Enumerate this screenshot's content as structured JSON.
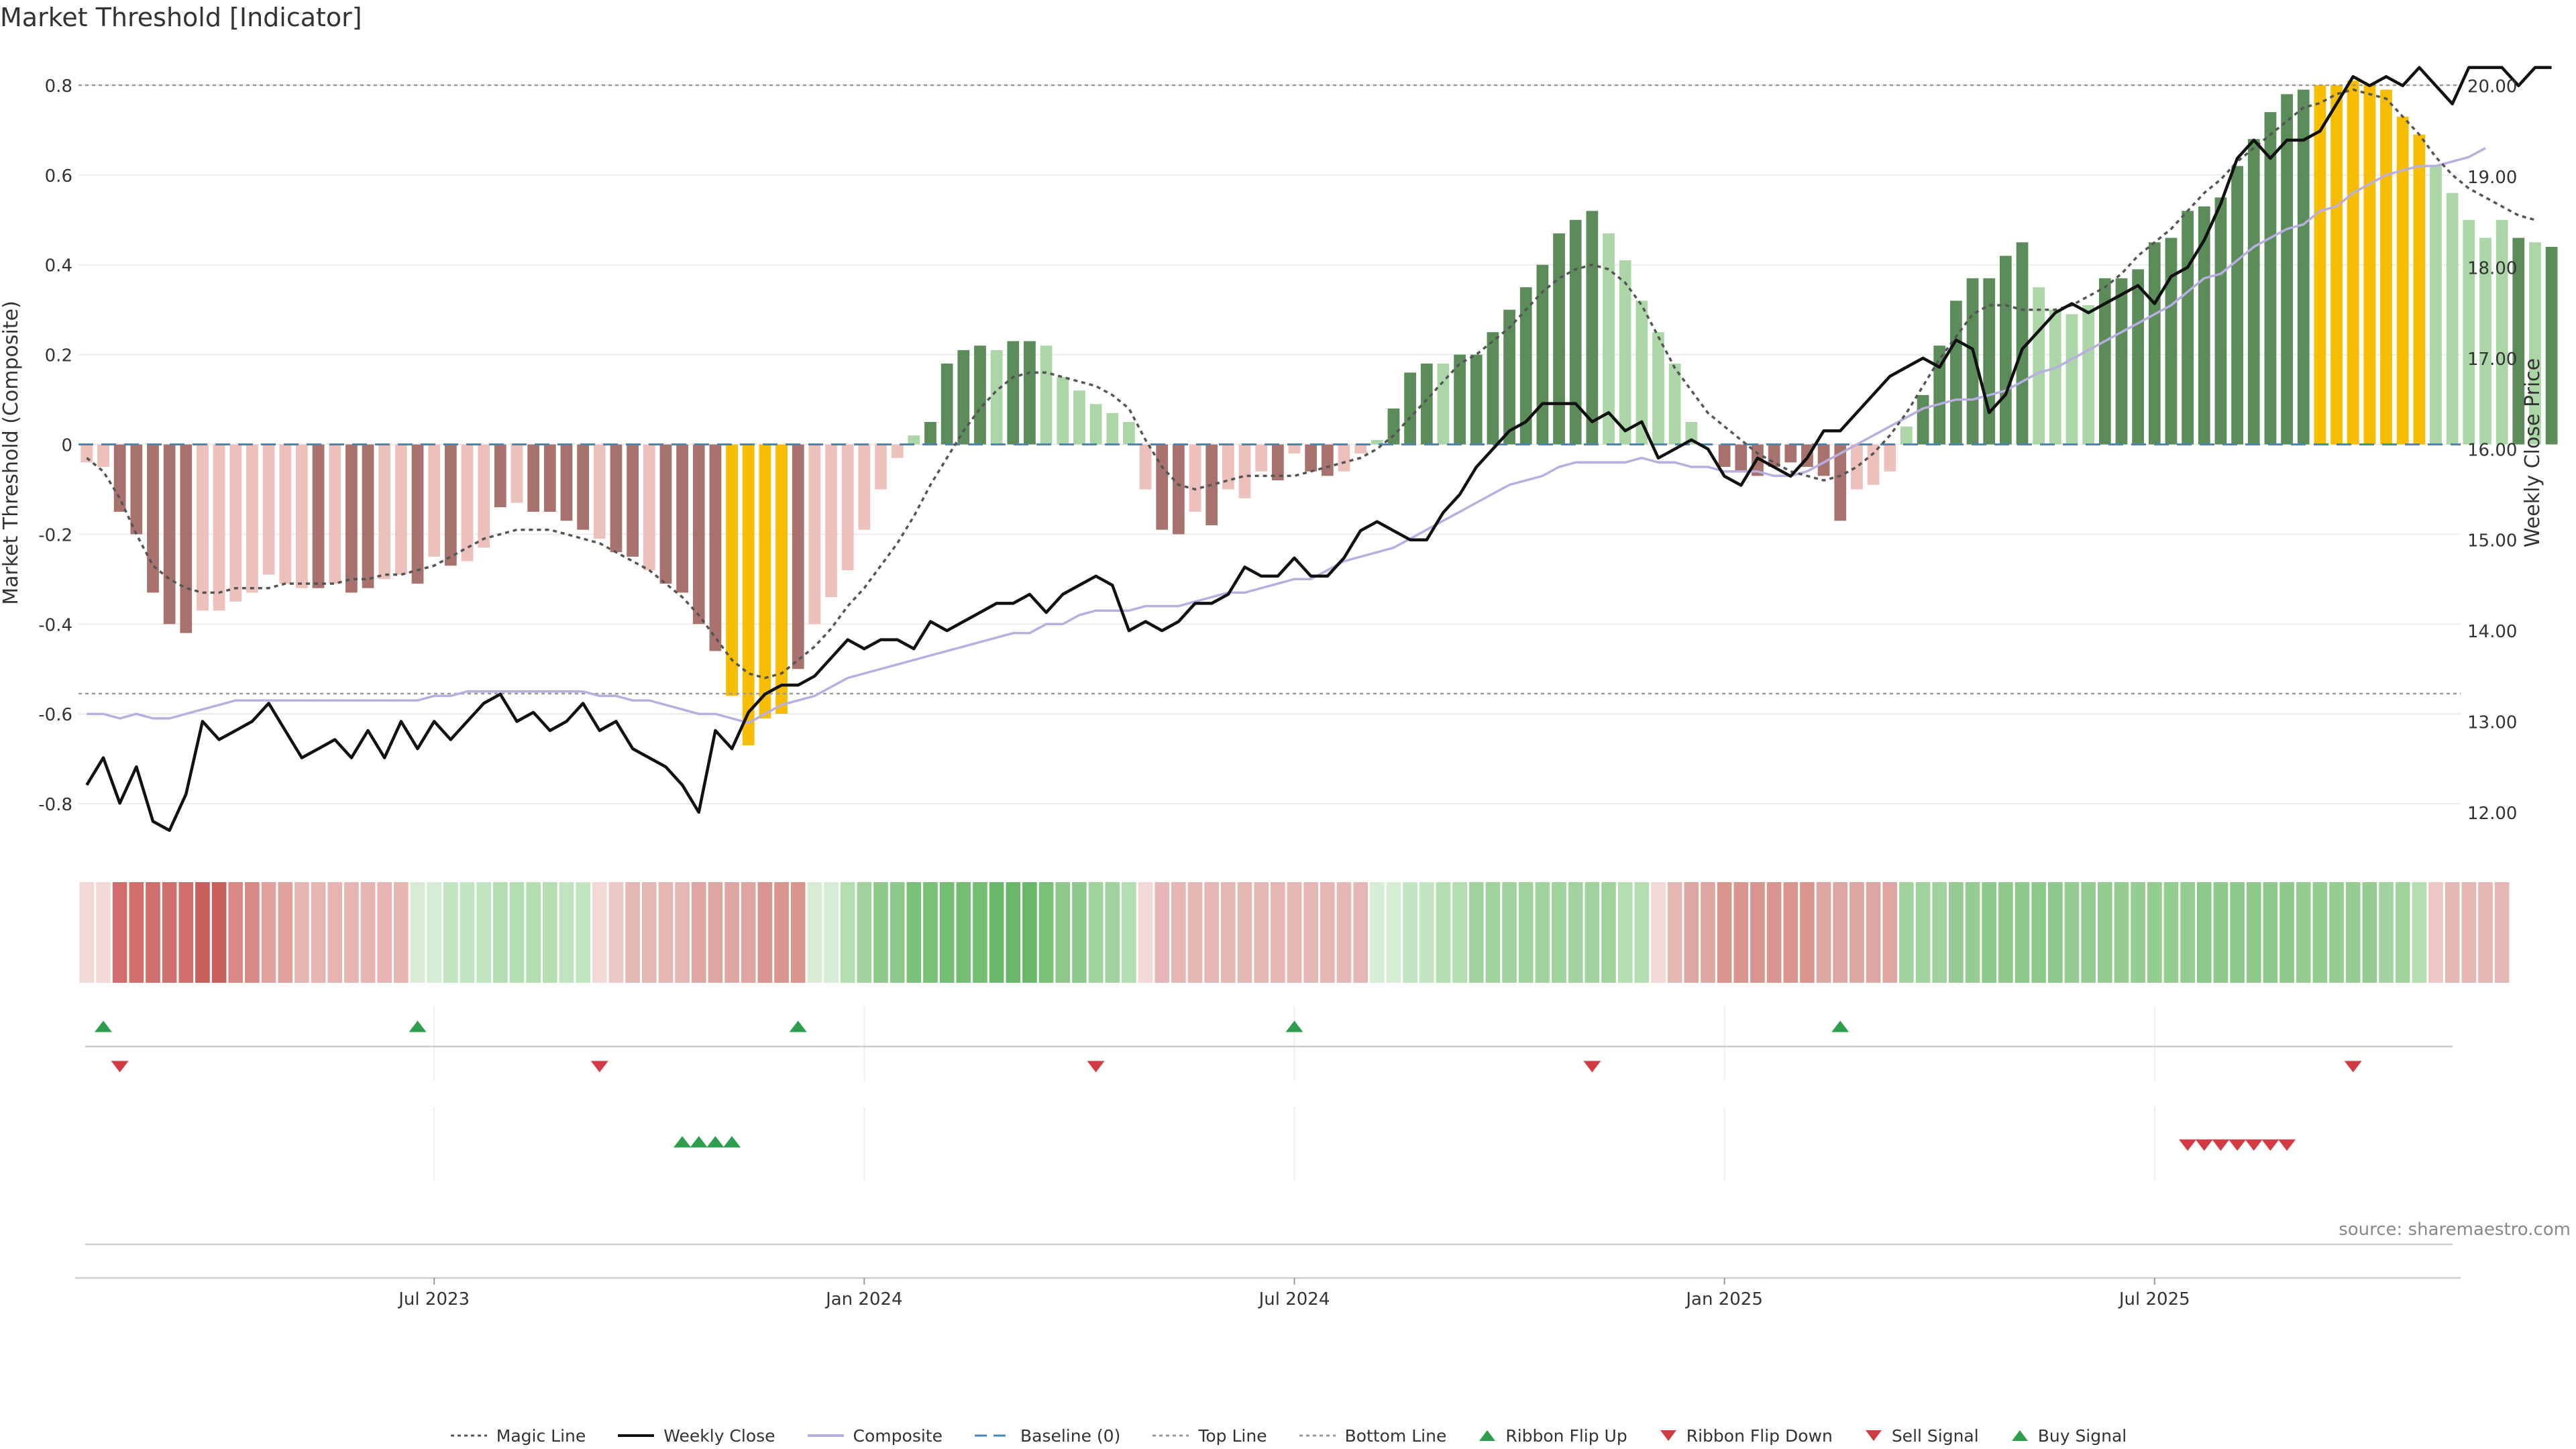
{
  "title": "Market Threshold [Indicator]",
  "source": "source: sharemaestro.com",
  "colors": {
    "up_dark": "#5b8c5a",
    "up_light": "#acd5a8",
    "down_dark": "#a8736f",
    "down_light": "#ecc0bb",
    "extreme": "#f7bd00",
    "weekly_close": "#111111",
    "composite": "#b8aee0",
    "magic": "#555555",
    "baseline": "#4a86b4",
    "threshold": "#999999",
    "buy": "#2e9e4e",
    "sell": "#d43a44"
  },
  "legend": [
    {
      "label": "Magic Line",
      "kind": "dotted",
      "color": "#555555"
    },
    {
      "label": "Weekly Close",
      "kind": "solid",
      "color": "#111111"
    },
    {
      "label": "Composite",
      "kind": "solid",
      "color": "#b8aee0"
    },
    {
      "label": "Baseline (0)",
      "kind": "dashed",
      "color": "#4a86b4"
    },
    {
      "label": "Top Line",
      "kind": "dotted",
      "color": "#999999"
    },
    {
      "label": "Bottom Line",
      "kind": "dotted",
      "color": "#999999"
    },
    {
      "label": "Ribbon Flip Up",
      "kind": "tri-up",
      "color": "#2e9e4e"
    },
    {
      "label": "Ribbon Flip Down",
      "kind": "tri-down",
      "color": "#d43a44"
    },
    {
      "label": "Sell Signal",
      "kind": "tri-down",
      "color": "#d43a44"
    },
    {
      "label": "Buy Signal",
      "kind": "tri-up",
      "color": "#2e9e4e"
    }
  ],
  "chart_data": {
    "type": "bar",
    "ylabel": "Market Threshold (Composite)",
    "ylabel_right": "Weekly Close Price",
    "yticks_left": [
      "0.8",
      "0.6",
      "0.4",
      "0.2",
      "0",
      "-0.2",
      "-0.4",
      "-0.6",
      "-0.8"
    ],
    "yticks_right": [
      "20.00",
      "19.00",
      "18.00",
      "17.00",
      "16.00",
      "15.00",
      "14.00",
      "13.00",
      "12.00"
    ],
    "ylim_left": [
      -0.9,
      0.9
    ],
    "ylim_right": [
      11.6,
      20.5
    ],
    "x_range_weeks": [
      0,
      143
    ],
    "xticks": [
      {
        "label": "Jul 2023",
        "week": 21
      },
      {
        "label": "Jan 2024",
        "week": 47
      },
      {
        "label": "Jul 2024",
        "week": 73
      },
      {
        "label": "Jan 2025",
        "week": 99
      },
      {
        "label": "Jul 2025",
        "week": 125
      }
    ],
    "top_line": 0.8,
    "bottom_line": -0.555,
    "baseline": 0,
    "composite_bars": [
      -0.04,
      -0.05,
      -0.15,
      -0.2,
      -0.33,
      -0.4,
      -0.42,
      -0.37,
      -0.37,
      -0.35,
      -0.33,
      -0.29,
      -0.31,
      -0.32,
      -0.32,
      -0.31,
      -0.33,
      -0.32,
      -0.3,
      -0.29,
      -0.31,
      -0.25,
      -0.27,
      -0.26,
      -0.23,
      -0.14,
      -0.13,
      -0.15,
      -0.15,
      -0.17,
      -0.19,
      -0.21,
      -0.24,
      -0.25,
      -0.28,
      -0.31,
      -0.33,
      -0.4,
      -0.46,
      -0.56,
      -0.67,
      -0.61,
      -0.6,
      -0.5,
      -0.4,
      -0.34,
      -0.28,
      -0.19,
      -0.1,
      -0.03,
      0.02,
      0.05,
      0.18,
      0.21,
      0.22,
      0.21,
      0.23,
      0.23,
      0.22,
      0.15,
      0.12,
      0.09,
      0.07,
      0.05,
      -0.1,
      -0.19,
      -0.2,
      -0.15,
      -0.18,
      -0.1,
      -0.12,
      -0.06,
      -0.08,
      -0.02,
      -0.06,
      -0.07,
      -0.06,
      -0.02,
      0.01,
      0.08,
      0.16,
      0.18,
      0.18,
      0.2,
      0.2,
      0.25,
      0.3,
      0.35,
      0.4,
      0.47,
      0.5,
      0.52,
      0.47,
      0.41,
      0.32,
      0.25,
      0.18,
      0.05,
      0,
      -0.05,
      -0.06,
      -0.07,
      -0.05,
      -0.04,
      -0.05,
      -0.07,
      -0.17,
      -0.1,
      -0.09,
      -0.06,
      0.04,
      0.11,
      0.22,
      0.32,
      0.37,
      0.37,
      0.42,
      0.45,
      0.35,
      0.3,
      0.29,
      0.31,
      0.37,
      0.37,
      0.39,
      0.45,
      0.46,
      0.52,
      0.53,
      0.55,
      0.62,
      0.68,
      0.74,
      0.78,
      0.79,
      0.8,
      0.8,
      0.81,
      0.8,
      0.79,
      0.73,
      0.69,
      0.62,
      0.56,
      0.5,
      0.46,
      0.5,
      0.46,
      0.45,
      0.44
    ],
    "bar_shade": [
      "L",
      "L",
      "D",
      "D",
      "D",
      "D",
      "D",
      "L",
      "L",
      "L",
      "L",
      "L",
      "L",
      "L",
      "D",
      "L",
      "D",
      "D",
      "L",
      "L",
      "D",
      "L",
      "D",
      "L",
      "L",
      "D",
      "L",
      "D",
      "D",
      "D",
      "D",
      "L",
      "D",
      "D",
      "L",
      "D",
      "D",
      "D",
      "D",
      "X",
      "X",
      "X",
      "X",
      "D",
      "L",
      "L",
      "L",
      "L",
      "L",
      "L",
      "L",
      "D",
      "D",
      "D",
      "D",
      "L",
      "D",
      "D",
      "L",
      "L",
      "L",
      "L",
      "L",
      "L",
      "L",
      "D",
      "D",
      "L",
      "D",
      "L",
      "L",
      "L",
      "D",
      "L",
      "D",
      "D",
      "L",
      "L",
      "L",
      "D",
      "D",
      "D",
      "L",
      "D",
      "D",
      "D",
      "D",
      "D",
      "D",
      "D",
      "D",
      "D",
      "L",
      "L",
      "L",
      "L",
      "L",
      "L",
      "L",
      "D",
      "D",
      "D",
      "D",
      "D",
      "D",
      "D",
      "D",
      "L",
      "L",
      "L",
      "L",
      "D",
      "D",
      "D",
      "D",
      "D",
      "D",
      "D",
      "L",
      "L",
      "L",
      "L",
      "D",
      "D",
      "D",
      "D",
      "D",
      "D",
      "D",
      "D",
      "D",
      "D",
      "D",
      "D",
      "D",
      "X",
      "X",
      "X",
      "X",
      "X",
      "X",
      "X",
      "L",
      "L",
      "L",
      "L",
      "L",
      "D",
      "L",
      "D",
      "L",
      "L",
      "L"
    ],
    "weekly_close": [
      12.3,
      12.6,
      12.1,
      12.5,
      11.9,
      11.8,
      12.2,
      13.0,
      12.8,
      12.9,
      13.0,
      13.2,
      12.9,
      12.6,
      12.7,
      12.8,
      12.6,
      12.9,
      12.6,
      13.0,
      12.7,
      13.0,
      12.8,
      13.0,
      13.2,
      13.3,
      13.0,
      13.1,
      12.9,
      13.0,
      13.2,
      12.9,
      13.0,
      12.7,
      12.6,
      12.5,
      12.3,
      12.0,
      12.9,
      12.7,
      13.1,
      13.3,
      13.4,
      13.4,
      13.5,
      13.7,
      13.9,
      13.8,
      13.9,
      13.9,
      13.8,
      14.1,
      14.0,
      14.1,
      14.2,
      14.3,
      14.3,
      14.4,
      14.2,
      14.4,
      14.5,
      14.6,
      14.5,
      14.0,
      14.1,
      14.0,
      14.1,
      14.3,
      14.3,
      14.4,
      14.7,
      14.6,
      14.6,
      14.8,
      14.6,
      14.6,
      14.8,
      15.1,
      15.2,
      15.1,
      15.0,
      15.0,
      15.3,
      15.5,
      15.8,
      16.0,
      16.2,
      16.3,
      16.5,
      16.5,
      16.5,
      16.3,
      16.4,
      16.2,
      16.3,
      15.9,
      16.0,
      16.1,
      16.0,
      15.7,
      15.6,
      15.9,
      15.8,
      15.7,
      15.9,
      16.2,
      16.2,
      16.4,
      16.6,
      16.8,
      16.9,
      17.0,
      16.9,
      17.2,
      17.1,
      16.4,
      16.6,
      17.1,
      17.3,
      17.5,
      17.6,
      17.5,
      17.6,
      17.7,
      17.8,
      17.6,
      17.9,
      18.0,
      18.3,
      18.7,
      19.2,
      19.4,
      19.2,
      19.4,
      19.4,
      19.5,
      19.8,
      20.1,
      20.0,
      20.1,
      20.0,
      20.2,
      20.0,
      19.8,
      20.2,
      20.2,
      20.2,
      20.0,
      20.2,
      20.2
    ],
    "composite_line": [
      -0.6,
      -0.6,
      -0.61,
      -0.6,
      -0.61,
      -0.61,
      -0.6,
      -0.59,
      -0.58,
      -0.57,
      -0.57,
      -0.57,
      -0.57,
      -0.57,
      -0.57,
      -0.57,
      -0.57,
      -0.57,
      -0.57,
      -0.57,
      -0.57,
      -0.56,
      -0.56,
      -0.55,
      -0.55,
      -0.55,
      -0.55,
      -0.55,
      -0.55,
      -0.55,
      -0.55,
      -0.56,
      -0.56,
      -0.57,
      -0.57,
      -0.58,
      -0.59,
      -0.6,
      -0.6,
      -0.61,
      -0.62,
      -0.6,
      -0.58,
      -0.57,
      -0.56,
      -0.54,
      -0.52,
      -0.51,
      -0.5,
      -0.49,
      -0.48,
      -0.47,
      -0.46,
      -0.45,
      -0.44,
      -0.43,
      -0.42,
      -0.42,
      -0.4,
      -0.4,
      -0.38,
      -0.37,
      -0.37,
      -0.37,
      -0.36,
      -0.36,
      -0.36,
      -0.35,
      -0.34,
      -0.33,
      -0.33,
      -0.32,
      -0.31,
      -0.3,
      -0.3,
      -0.28,
      -0.26,
      -0.25,
      -0.24,
      -0.23,
      -0.21,
      -0.19,
      -0.17,
      -0.15,
      -0.13,
      -0.11,
      -0.09,
      -0.08,
      -0.07,
      -0.05,
      -0.04,
      -0.04,
      -0.04,
      -0.04,
      -0.03,
      -0.04,
      -0.04,
      -0.05,
      -0.05,
      -0.06,
      -0.06,
      -0.06,
      -0.07,
      -0.07,
      -0.06,
      -0.04,
      -0.02,
      0,
      0.02,
      0.04,
      0.06,
      0.08,
      0.09,
      0.1,
      0.1,
      0.11,
      0.12,
      0.14,
      0.16,
      0.17,
      0.19,
      0.21,
      0.23,
      0.25,
      0.27,
      0.29,
      0.31,
      0.34,
      0.37,
      0.38,
      0.41,
      0.44,
      0.46,
      0.48,
      0.49,
      0.52,
      0.53,
      0.56,
      0.58,
      0.6,
      0.61,
      0.62,
      0.62,
      0.63,
      0.64,
      0.66
    ],
    "magic_line": [
      -0.03,
      -0.06,
      -0.12,
      -0.2,
      -0.27,
      -0.3,
      -0.32,
      -0.33,
      -0.33,
      -0.32,
      -0.32,
      -0.32,
      -0.31,
      -0.31,
      -0.31,
      -0.31,
      -0.3,
      -0.3,
      -0.29,
      -0.29,
      -0.28,
      -0.27,
      -0.25,
      -0.23,
      -0.21,
      -0.2,
      -0.19,
      -0.19,
      -0.19,
      -0.2,
      -0.21,
      -0.22,
      -0.24,
      -0.26,
      -0.28,
      -0.31,
      -0.34,
      -0.38,
      -0.43,
      -0.48,
      -0.51,
      -0.52,
      -0.51,
      -0.48,
      -0.45,
      -0.41,
      -0.36,
      -0.32,
      -0.27,
      -0.22,
      -0.16,
      -0.09,
      -0.03,
      0.03,
      0.08,
      0.12,
      0.15,
      0.16,
      0.16,
      0.15,
      0.14,
      0.13,
      0.11,
      0.08,
      0.01,
      -0.05,
      -0.09,
      -0.1,
      -0.09,
      -0.08,
      -0.07,
      -0.07,
      -0.07,
      -0.07,
      -0.06,
      -0.05,
      -0.04,
      -0.03,
      -0.01,
      0.02,
      0.06,
      0.1,
      0.14,
      0.18,
      0.2,
      0.23,
      0.26,
      0.3,
      0.34,
      0.37,
      0.39,
      0.4,
      0.39,
      0.36,
      0.31,
      0.24,
      0.17,
      0.12,
      0.07,
      0.04,
      0.01,
      -0.02,
      -0.04,
      -0.06,
      -0.07,
      -0.08,
      -0.07,
      -0.05,
      -0.02,
      0.02,
      0.07,
      0.13,
      0.19,
      0.24,
      0.29,
      0.31,
      0.31,
      0.3,
      0.3,
      0.3,
      0.31,
      0.33,
      0.35,
      0.38,
      0.42,
      0.45,
      0.48,
      0.52,
      0.56,
      0.59,
      0.63,
      0.66,
      0.69,
      0.72,
      0.75,
      0.76,
      0.78,
      0.79,
      0.78,
      0.77,
      0.73,
      0.69,
      0.64,
      0.6,
      0.57,
      0.55,
      0.53,
      0.51,
      0.5
    ],
    "ribbon": [
      "#f2d8d6",
      "#f2d8d6",
      "#cf6e6c",
      "#cf6e6c",
      "#cf6e6c",
      "#cf6e6c",
      "#cf6e6c",
      "#c95f5c",
      "#c95f5c",
      "#d98885",
      "#d98885",
      "#e0a09d",
      "#e0a09d",
      "#e6b4b1",
      "#e6b4b1",
      "#e6b4b1",
      "#e6b4b1",
      "#e6b4b1",
      "#e6b4b1",
      "#e6b4b1",
      "#d7ecd5",
      "#d7ecd5",
      "#c2e3c0",
      "#c2e3c0",
      "#c2e3c0",
      "#b4ddb2",
      "#b4ddb2",
      "#b4ddb2",
      "#b4ddb2",
      "#c2e3c0",
      "#c2e3c0",
      "#f2d8d6",
      "#ebc8c5",
      "#e6b8b5",
      "#e6b8b5",
      "#e6b8b5",
      "#e6b8b5",
      "#dea6a3",
      "#dea6a3",
      "#dea6a3",
      "#dea6a3",
      "#d9958f",
      "#d9958f",
      "#d9958f",
      "#d7ecd5",
      "#d7ecd5",
      "#b4ddb2",
      "#a0d39e",
      "#8cc98a",
      "#8cc98a",
      "#7ac077",
      "#7ac077",
      "#74bd73",
      "#74bd73",
      "#74bd73",
      "#6ab869",
      "#6ab869",
      "#6ab869",
      "#7ac077",
      "#8cc98a",
      "#8cc98a",
      "#a0d39e",
      "#a0d39e",
      "#b4ddb2",
      "#f2d8d6",
      "#e6b8b5",
      "#e6b8b5",
      "#e6b8b5",
      "#e6b8b5",
      "#e6b8b5",
      "#e6b8b5",
      "#e6b8b5",
      "#e6b8b5",
      "#e6b8b5",
      "#e6b8b5",
      "#e6b8b5",
      "#e6b8b5",
      "#e6b8b5",
      "#d7ecd5",
      "#d7ecd5",
      "#c2e3c0",
      "#c2e3c0",
      "#b4ddb2",
      "#b4ddb2",
      "#a0d39e",
      "#a0d39e",
      "#a0d39e",
      "#a0d39e",
      "#a0d39e",
      "#a0d39e",
      "#a0d39e",
      "#a0d39e",
      "#a0d39e",
      "#b4ddb2",
      "#b4ddb2",
      "#f2d8d6",
      "#e6b8b5",
      "#dea6a3",
      "#dea6a3",
      "#d9958f",
      "#d9958f",
      "#d9958f",
      "#d9958f",
      "#d9958f",
      "#d9958f",
      "#dea6a3",
      "#dea6a3",
      "#dea6a3",
      "#dea6a3",
      "#dea6a3",
      "#a0d39e",
      "#a0d39e",
      "#a0d39e",
      "#94cc92",
      "#94cc92",
      "#8cc98a",
      "#8cc98a",
      "#8cc98a",
      "#8cc98a",
      "#8cc98a",
      "#94cc92",
      "#94cc92",
      "#94cc92",
      "#94cc92",
      "#94cc92",
      "#94cc92",
      "#94cc92",
      "#94cc92",
      "#8cc98a",
      "#8cc98a",
      "#8cc98a",
      "#8cc98a",
      "#8cc98a",
      "#8cc98a",
      "#94cc92",
      "#94cc92",
      "#94cc92",
      "#94cc92",
      "#94cc92",
      "#a0d39e",
      "#a0d39e",
      "#b4ddb2",
      "#ebc8c5",
      "#e6b8b5",
      "#e6b8b5",
      "#e6b8b5",
      "#e6b8b5"
    ],
    "ribbon_flip_up_weeks": [
      1,
      20,
      43,
      73,
      106
    ],
    "ribbon_flip_down_weeks": [
      2,
      31,
      61,
      91,
      137
    ],
    "buy_signal_weeks": [
      36,
      37,
      38,
      39
    ],
    "sell_signal_weeks": [
      127,
      128,
      129,
      130,
      131,
      132,
      133
    ]
  }
}
